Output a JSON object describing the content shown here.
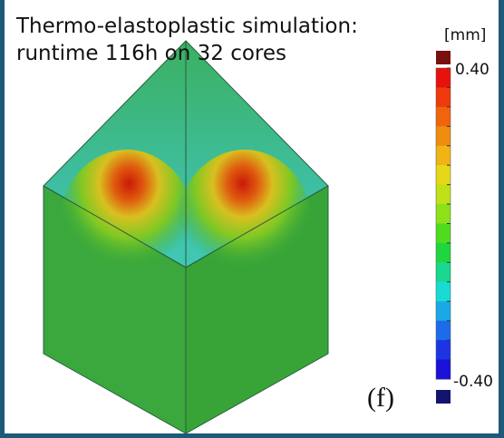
{
  "caption": {
    "lines": [
      "Thermo-elastoplastic simulation:",
      "runtime 116h on 32 cores"
    ]
  },
  "colorbar": {
    "unit": "[mm]",
    "max_label": "0.40",
    "min_label": "-0.40",
    "over_color": "#7a1010",
    "under_color": "#14146e",
    "colors": [
      "#e8120c",
      "#ee3a0c",
      "#f0640c",
      "#f08c10",
      "#f0b414",
      "#e6d818",
      "#c0e018",
      "#8ee01a",
      "#50dc1e",
      "#20d640",
      "#18d890",
      "#18dcd4",
      "#1aa8e6",
      "#1c6cea",
      "#1c34e4",
      "#1a10d8"
    ]
  },
  "panel_label": "(f)"
}
